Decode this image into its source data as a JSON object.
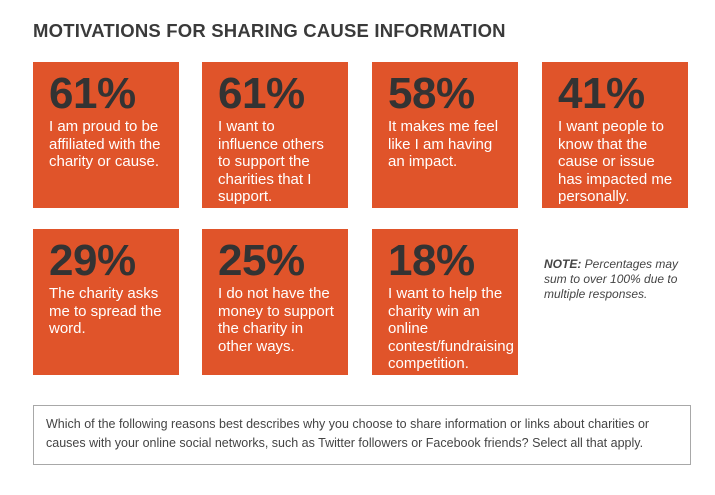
{
  "title": "MOTIVATIONS FOR SHARING CAUSE INFORMATION",
  "chart_data": {
    "type": "table",
    "title": "MOTIVATIONS FOR SHARING CAUSE INFORMATION",
    "unit": "%",
    "items": [
      {
        "value": "61%",
        "label": "I am proud to be affiliated with the charity or cause."
      },
      {
        "value": "61%",
        "label": "I want to influence others to support the charities that I support."
      },
      {
        "value": "58%",
        "label": "It makes me feel like I am having an impact."
      },
      {
        "value": "41%",
        "label": "I want people to know that the cause or issue has impacted me personally."
      },
      {
        "value": "29%",
        "label": "The charity asks me to spread the word."
      },
      {
        "value": "25%",
        "label": "I do not have the money to support the charity in other ways."
      },
      {
        "value": "18%",
        "label": "I want to help the charity win an online contest/fundraising competition."
      }
    ]
  },
  "note": {
    "label": "NOTE:",
    "text": " Percentages may sum to over 100% due to multiple responses."
  },
  "question": "Which of the following reasons best describes why you choose to share information or links about charities or causes with your online social networks, such as Twitter followers or Facebook friends? Select all that apply.",
  "colors": {
    "tile": "#e0542a",
    "percent": "#333333",
    "text": "#ffffff"
  }
}
